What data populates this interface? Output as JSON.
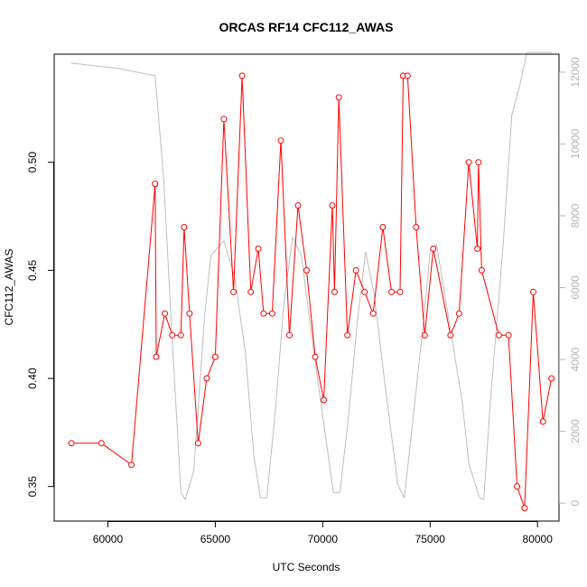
{
  "chart_data": {
    "type": "line",
    "title": "ORCAS RF14 CFC112_AWAS",
    "xlabel": "UTC Seconds",
    "ylabel": "CFC112_AWAS",
    "xlim": [
      57500,
      81000
    ],
    "ylim": [
      0.334,
      0.55
    ],
    "y2lim": [
      -500,
      12500
    ],
    "x_ticks": [
      60000,
      65000,
      70000,
      75000,
      80000
    ],
    "x_tick_labels": [
      "60000",
      "65000",
      "70000",
      "75000",
      "80000"
    ],
    "y_ticks": [
      0.35,
      0.4,
      0.45,
      0.5
    ],
    "y_tick_labels": [
      "0.35",
      "0.40",
      "0.45",
      "0.50"
    ],
    "y2_ticks": [
      0,
      2000,
      4000,
      6000,
      8000,
      10000,
      12000
    ],
    "y2_tick_labels": [
      "0",
      "2000",
      "4000",
      "6000",
      "8000",
      "10000",
      "12000"
    ],
    "grid": false,
    "series": [
      {
        "role": "primary",
        "axis": "left",
        "color": "#ff0000",
        "marker": "open-circle",
        "points": [
          [
            58300,
            0.37
          ],
          [
            59700,
            0.37
          ],
          [
            61100,
            0.36
          ],
          [
            62200,
            0.49
          ],
          [
            62250,
            0.41
          ],
          [
            62650,
            0.43
          ],
          [
            63000,
            0.42
          ],
          [
            63400,
            0.42
          ],
          [
            63550,
            0.47
          ],
          [
            63800,
            0.43
          ],
          [
            64200,
            0.37
          ],
          [
            64600,
            0.4
          ],
          [
            65000,
            0.41
          ],
          [
            65400,
            0.52
          ],
          [
            65850,
            0.44
          ],
          [
            66250,
            0.54
          ],
          [
            66650,
            0.44
          ],
          [
            67000,
            0.46
          ],
          [
            67250,
            0.43
          ],
          [
            67650,
            0.43
          ],
          [
            68050,
            0.51
          ],
          [
            68450,
            0.42
          ],
          [
            68850,
            0.48
          ],
          [
            69250,
            0.45
          ],
          [
            69650,
            0.41
          ],
          [
            70050,
            0.39
          ],
          [
            70450,
            0.48
          ],
          [
            70550,
            0.44
          ],
          [
            70750,
            0.53
          ],
          [
            71150,
            0.42
          ],
          [
            71550,
            0.45
          ],
          [
            71950,
            0.44
          ],
          [
            72350,
            0.43
          ],
          [
            72800,
            0.47
          ],
          [
            73200,
            0.44
          ],
          [
            73600,
            0.44
          ],
          [
            73750,
            0.54
          ],
          [
            73950,
            0.54
          ],
          [
            74350,
            0.47
          ],
          [
            74750,
            0.42
          ],
          [
            75150,
            0.46
          ],
          [
            75950,
            0.42
          ],
          [
            76350,
            0.43
          ],
          [
            76800,
            0.5
          ],
          [
            77200,
            0.46
          ],
          [
            77250,
            0.5
          ],
          [
            77400,
            0.45
          ],
          [
            78200,
            0.42
          ],
          [
            78650,
            0.42
          ],
          [
            79050,
            0.35
          ],
          [
            79400,
            0.34
          ],
          [
            79800,
            0.44
          ],
          [
            80250,
            0.38
          ],
          [
            80650,
            0.4
          ]
        ]
      },
      {
        "role": "secondary",
        "axis": "right",
        "color": "#bebebe",
        "marker": "none",
        "points": [
          [
            58300,
            12250
          ],
          [
            60500,
            12100
          ],
          [
            62200,
            11900
          ],
          [
            62600,
            9000
          ],
          [
            63000,
            4500
          ],
          [
            63400,
            300
          ],
          [
            63600,
            100
          ],
          [
            64000,
            900
          ],
          [
            64500,
            5200
          ],
          [
            64800,
            6900
          ],
          [
            65400,
            7300
          ],
          [
            65900,
            6300
          ],
          [
            66400,
            4200
          ],
          [
            66800,
            1300
          ],
          [
            67100,
            150
          ],
          [
            67400,
            150
          ],
          [
            67800,
            2600
          ],
          [
            68200,
            5600
          ],
          [
            68600,
            7400
          ],
          [
            69000,
            6900
          ],
          [
            69500,
            4600
          ],
          [
            70100,
            2000
          ],
          [
            70500,
            300
          ],
          [
            70800,
            300
          ],
          [
            71200,
            2400
          ],
          [
            71600,
            5000
          ],
          [
            72000,
            7000
          ],
          [
            72400,
            5800
          ],
          [
            72900,
            3300
          ],
          [
            73500,
            500
          ],
          [
            73800,
            150
          ],
          [
            74200,
            2300
          ],
          [
            74700,
            5100
          ],
          [
            75000,
            7000
          ],
          [
            75300,
            7200
          ],
          [
            75900,
            5000
          ],
          [
            76500,
            2800
          ],
          [
            76800,
            1100
          ],
          [
            77300,
            150
          ],
          [
            77500,
            100
          ],
          [
            77800,
            2800
          ],
          [
            78400,
            7200
          ],
          [
            78800,
            10800
          ],
          [
            79200,
            11700
          ],
          [
            79500,
            12550
          ],
          [
            80700,
            12550
          ]
        ]
      }
    ]
  }
}
